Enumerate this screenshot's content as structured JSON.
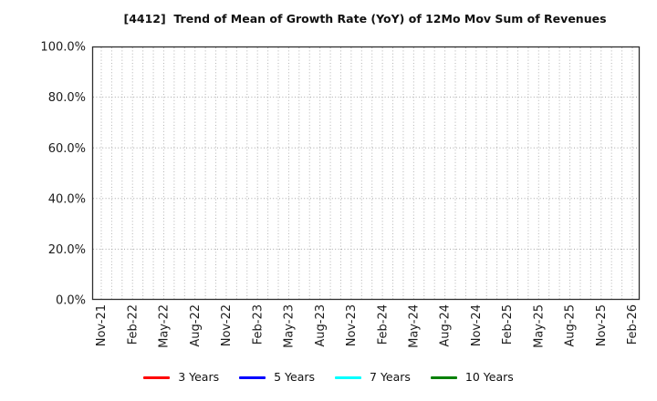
{
  "chart_data": {
    "type": "line",
    "title": "[4412]  Trend of Mean of Growth Rate (YoY) of 12Mo Mov Sum of Revenues",
    "xlabel": "",
    "ylabel": "",
    "ylim": [
      0,
      100
    ],
    "y_ticks": [
      0,
      20,
      40,
      60,
      80,
      100
    ],
    "y_tick_labels": [
      "0.0%",
      "20.0%",
      "40.0%",
      "60.0%",
      "80.0%",
      "100.0%"
    ],
    "x_tick_labels": [
      "Nov-21",
      "Feb-22",
      "May-22",
      "Aug-22",
      "Nov-22",
      "Feb-23",
      "May-23",
      "Aug-23",
      "Nov-23",
      "Feb-24",
      "May-24",
      "Aug-24",
      "Nov-24",
      "Feb-25",
      "May-25",
      "Aug-25",
      "Nov-25",
      "Feb-26"
    ],
    "x_minor_per_major": 3,
    "grid": "dotted",
    "legend_position": "bottom",
    "series": [
      {
        "name": "3 Years",
        "color": "#ff0000",
        "values": []
      },
      {
        "name": "5 Years",
        "color": "#0000ff",
        "values": []
      },
      {
        "name": "7 Years",
        "color": "#00ffff",
        "values": []
      },
      {
        "name": "10 Years",
        "color": "#008000",
        "values": []
      }
    ],
    "colors": {
      "frame": "#2e2e2e",
      "grid": "#b3b3b3",
      "text": "#1c1c1c",
      "background": "#ffffff"
    }
  }
}
